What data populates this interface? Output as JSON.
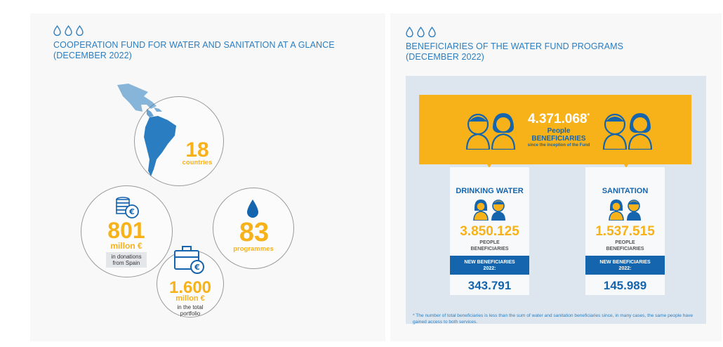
{
  "left": {
    "title": "COOPERATION FUND FOR WATER AND SANITATION AT A GLANCE (DECEMBER 2022)",
    "countries": {
      "value": "18",
      "label": "countries"
    },
    "donations": {
      "value": "801",
      "unit": "millon €",
      "label_line1": "in donations",
      "label_line2": "from Spain"
    },
    "programmes": {
      "value": "83",
      "label": "programmes"
    },
    "portfolio": {
      "value": "1.600",
      "unit": "millon €",
      "label_line1": "in the total",
      "label_line2": "portfolio"
    }
  },
  "right": {
    "title_line1": "BENEFICIARIES OF THE WATER FUND PROGRAMS",
    "title_line2": "(DECEMBER 2022)",
    "total": {
      "value": "4.371.068",
      "asterisk": "*",
      "line1": "People",
      "line2": "BENEFICIARIES",
      "line3": "since the inception of the Fund"
    },
    "drinking_water": {
      "heading": "DRINKING WATER",
      "value": "3.850.125",
      "sub1": "PEOPLE",
      "sub2": "BENEFICIARIES",
      "new_line1": "NEW BENEFICIARIES",
      "new_line2": "2022:",
      "new_value": "343.791"
    },
    "sanitation": {
      "heading": "SANITATION",
      "value": "1.537.515",
      "sub1": "PEOPLE",
      "sub2": "BENEFICIARIES",
      "new_line1": "NEW BENEFICIARIES",
      "new_line2": "2022:",
      "new_value": "145.989"
    },
    "footnote": "* The number of total beneficiaries is less than the sum of water and sanitation beneficiaries since, in many cases, the same people have gained access to both services."
  },
  "colors": {
    "accent_blue": "#1565ae",
    "accent_yellow": "#f7b21a",
    "panel_blue": "#dde6ef"
  },
  "icons": [
    "water-drops-icon",
    "map-americas-icon",
    "coins-euro-icon",
    "water-drop-icon",
    "briefcase-euro-icon",
    "people-pair-icon",
    "down-arrow-icon"
  ]
}
